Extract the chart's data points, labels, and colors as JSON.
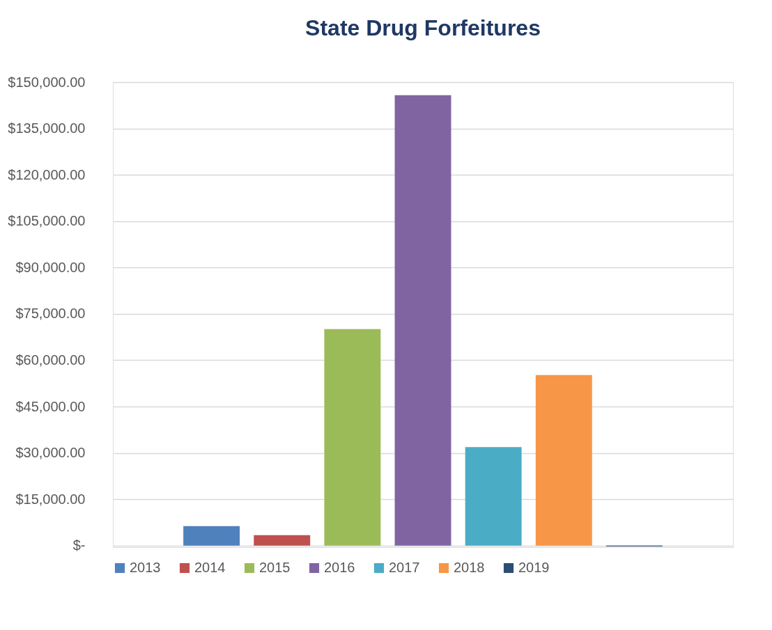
{
  "chart_data": {
    "type": "bar",
    "title": "State Drug Forfeitures",
    "categories": [
      null
    ],
    "series": [
      {
        "name": "2013",
        "color": "#4f81bd",
        "values": [
          6300
        ]
      },
      {
        "name": "2014",
        "color": "#c0504d",
        "values": [
          3400
        ]
      },
      {
        "name": "2015",
        "color": "#9bbb59",
        "values": [
          70100
        ]
      },
      {
        "name": "2016",
        "color": "#8064a2",
        "values": [
          145800
        ]
      },
      {
        "name": "2017",
        "color": "#4bacc6",
        "values": [
          31900
        ]
      },
      {
        "name": "2018",
        "color": "#f79646",
        "values": [
          55200
        ]
      },
      {
        "name": "2019",
        "color": "#2c4d75",
        "values": [
          -300
        ]
      }
    ],
    "ylim": [
      -500,
      150000
    ],
    "yticks": [
      {
        "value": 0,
        "label": "$-"
      },
      {
        "value": 15000,
        "label": "$15,000.00"
      },
      {
        "value": 30000,
        "label": "$30,000.00"
      },
      {
        "value": 45000,
        "label": "$45,000.00"
      },
      {
        "value": 60000,
        "label": "$60,000.00"
      },
      {
        "value": 75000,
        "label": "$75,000.00"
      },
      {
        "value": 90000,
        "label": "$90,000.00"
      },
      {
        "value": 105000,
        "label": "$105,000.00"
      },
      {
        "value": 120000,
        "label": "$120,000.00"
      },
      {
        "value": 135000,
        "label": "$135,000.00"
      },
      {
        "value": 150000,
        "label": "$150,000.00"
      }
    ],
    "grid": "y",
    "legend": "bottom"
  }
}
